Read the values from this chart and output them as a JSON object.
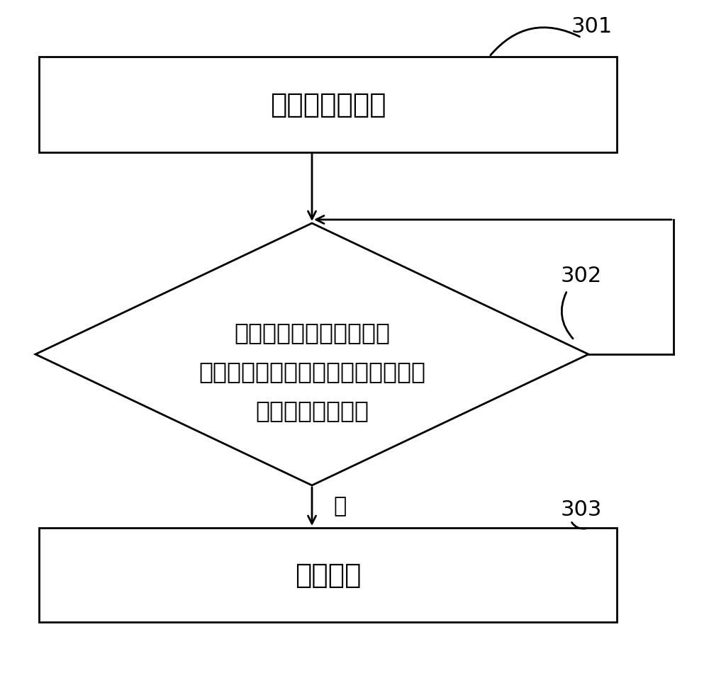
{
  "bg_color": "#ffffff",
  "box1_text": "提供一个鳍结构",
  "box1_label": "301",
  "diamond_text_lines": [
    "对鳍结构的顶部执行原子",
    "层刻蚀，并根据鳍结构的刻蚀量确定",
    "是否再次进行刻蚀"
  ],
  "diamond_label": "302",
  "box2_text": "停止刻蚀",
  "box2_label": "303",
  "no_label": "否",
  "line_color": "#000000",
  "box_fill": "#ffffff",
  "box_edge": "#000000",
  "font_size_box": 28,
  "font_size_diamond": 24,
  "font_size_label": 22,
  "font_size_no": 22,
  "lw": 2.0
}
